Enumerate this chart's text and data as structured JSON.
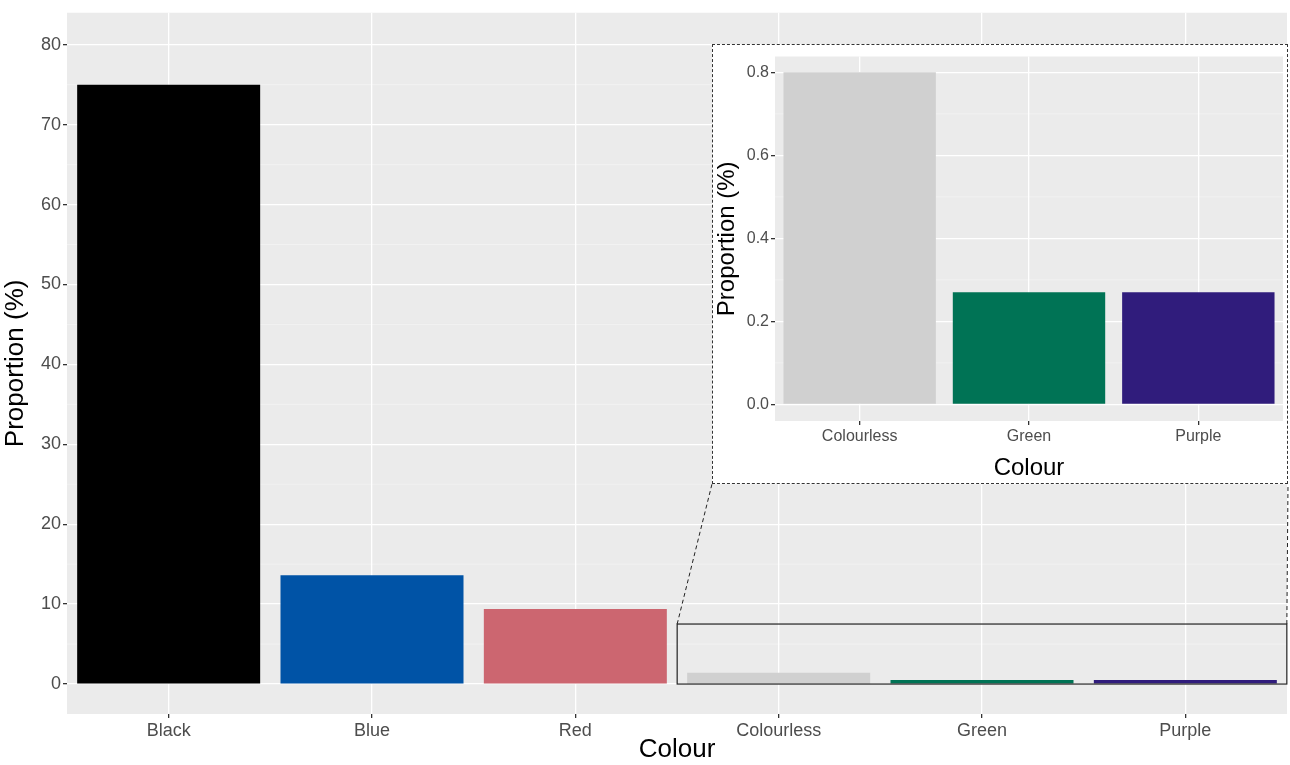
{
  "chart_data": [
    {
      "type": "bar",
      "xlabel": "Colour",
      "ylabel": "Proportion (%)",
      "categories": [
        "Black",
        "Blue",
        "Red",
        "Colourless",
        "Green",
        "Purple"
      ],
      "values": [
        75,
        13.6,
        9.4,
        1.4,
        0.5,
        0.5
      ],
      "colors": [
        "#000000",
        "#0053a6",
        "#cc6670",
        "#d0d0d0",
        "#007355",
        "#301c7c"
      ],
      "ylim": [
        -3.75,
        84
      ],
      "yticks": [
        0,
        10,
        20,
        30,
        40,
        50,
        60,
        70,
        80
      ],
      "grid": true
    },
    {
      "type": "bar",
      "xlabel": "Colour",
      "ylabel": "Proportion (%)",
      "categories": [
        "Colourless",
        "Green",
        "Purple"
      ],
      "values": [
        0.8,
        0.27,
        0.27
      ],
      "colors": [
        "#d0d0d0",
        "#007355",
        "#301c7c"
      ],
      "ylim": [
        -0.04,
        0.838
      ],
      "yticks": [
        {
          "value": 0,
          "label": "0.0"
        },
        {
          "value": 0.2,
          "label": "0.2"
        },
        {
          "value": 0.4,
          "label": "0.4"
        },
        {
          "value": 0.6,
          "label": "0.6"
        },
        {
          "value": 0.8,
          "label": "0.8"
        }
      ],
      "grid": true
    }
  ]
}
